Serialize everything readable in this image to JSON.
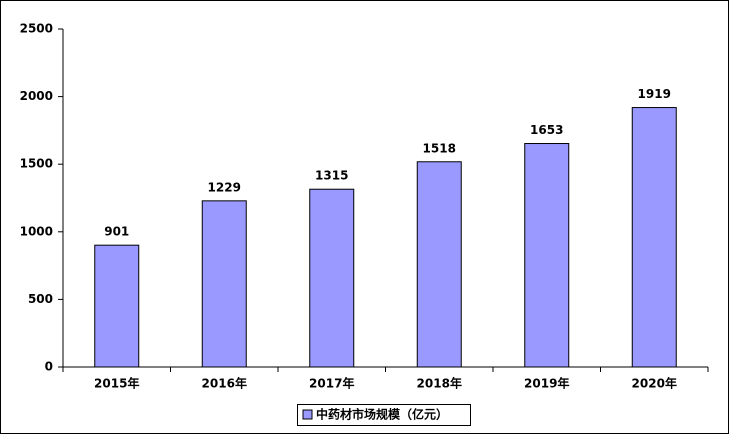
{
  "chart_data": {
    "type": "bar",
    "categories": [
      "2015年",
      "2016年",
      "2017年",
      "2018年",
      "2019年",
      "2020年"
    ],
    "series": [
      {
        "name": "中药材市场规模（亿元）",
        "color": "#9999ff",
        "values": [
          901,
          1229,
          1315,
          1518,
          1653,
          1919
        ]
      }
    ],
    "ylim": [
      0,
      2500
    ],
    "yticks": [
      0,
      500,
      1000,
      1500,
      2000,
      2500
    ],
    "grid": false,
    "legend": "bottom"
  }
}
